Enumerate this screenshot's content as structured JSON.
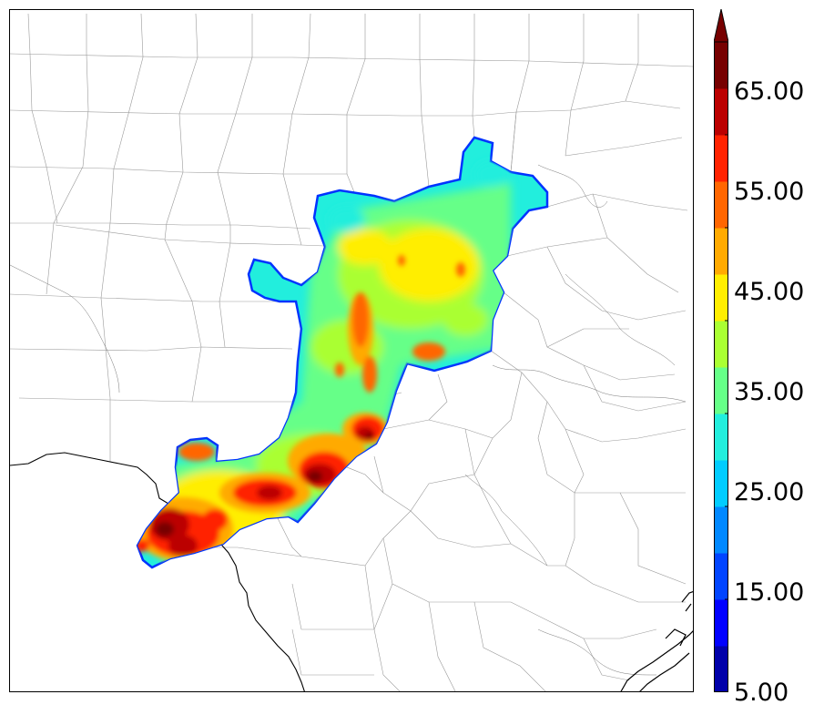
{
  "colorbar": {
    "levels": [
      "#0000aa",
      "#0000ff",
      "#0044ff",
      "#0088ff",
      "#00ccff",
      "#22eedd",
      "#66ff88",
      "#aaff33",
      "#ffee00",
      "#ffaa00",
      "#ff6600",
      "#ff2200",
      "#bb0000",
      "#770000"
    ],
    "extend_color": "#770000",
    "tick_labels": [
      "5.00",
      "15.00",
      "25.00",
      "35.00",
      "45.00",
      "55.00",
      "65.00"
    ]
  },
  "map": {
    "background": "#ffffff",
    "county_line_color": "#888888",
    "state_line_color": "#000000"
  }
}
